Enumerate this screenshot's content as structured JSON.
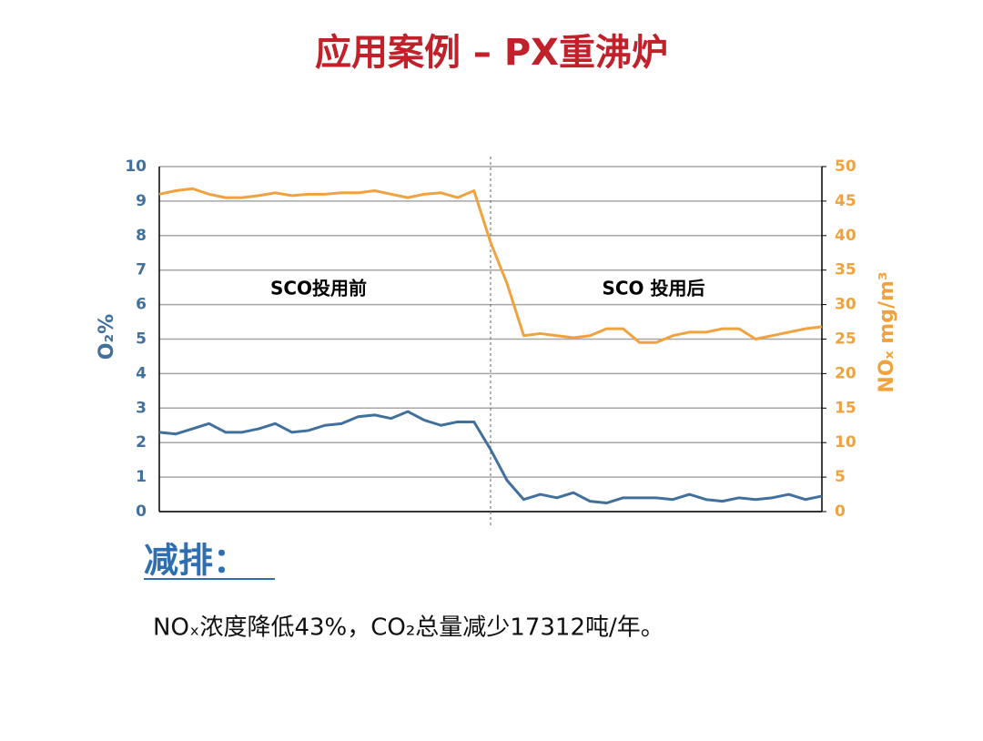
{
  "slide": {
    "title": "应用案例 – PX重沸炉",
    "section_heading": "减排：",
    "summary": "NOₓ浓度降低43%，CO₂总量减少17312吨/年。"
  },
  "chart_data": {
    "type": "line",
    "categories": [
      null,
      null,
      null,
      null,
      null,
      null,
      null,
      null,
      null,
      null,
      null,
      null,
      null,
      null,
      null,
      null,
      null,
      null,
      null,
      null,
      null,
      null,
      null,
      null,
      null,
      null,
      null,
      null,
      null,
      null,
      null,
      null,
      null,
      null,
      null,
      null,
      null,
      null,
      null,
      null,
      null
    ],
    "series": [
      {
        "name": "O₂%",
        "color": "#41709c",
        "values": [
          2.3,
          2.25,
          2.4,
          2.55,
          2.3,
          2.3,
          2.4,
          2.55,
          2.3,
          2.35,
          2.5,
          2.55,
          2.75,
          2.8,
          2.7,
          2.9,
          2.65,
          2.5,
          2.6,
          2.6,
          1.8,
          0.9,
          0.35,
          0.5,
          0.4,
          0.55,
          0.3,
          0.25,
          0.4,
          0.4,
          0.4,
          0.35,
          0.5,
          0.35,
          0.3,
          0.4,
          0.35,
          0.4,
          0.5,
          0.35,
          0.45
        ]
      },
      {
        "name": "NOₓ mg/m³",
        "color": "#f0a23e",
        "axis": "y2",
        "values": [
          46,
          46.5,
          46.8,
          46,
          45.5,
          45.5,
          45.8,
          46.2,
          45.8,
          46,
          46,
          46.2,
          46.2,
          46.5,
          46,
          45.5,
          46,
          46.2,
          45.5,
          46.5,
          39,
          33,
          25.5,
          25.8,
          25.5,
          25.2,
          25.5,
          26.5,
          26.5,
          24.5,
          24.5,
          25.5,
          26,
          26,
          26.5,
          26.5,
          25,
          25.5,
          26,
          26.5,
          26.8
        ]
      }
    ],
    "y_label": "O₂%",
    "y2_label": "NOₓ mg/m³",
    "annotations": [
      "SCO投用前",
      "SCO 投用后"
    ],
    "ylim": [
      0,
      10
    ],
    "yticks": [
      0,
      1,
      2,
      3,
      4,
      5,
      6,
      7,
      8,
      9,
      10
    ],
    "y2lim": [
      0,
      50
    ],
    "y2ticks": [
      0,
      5,
      10,
      15,
      20,
      25,
      30,
      35,
      40,
      45,
      50
    ],
    "grid": true
  }
}
